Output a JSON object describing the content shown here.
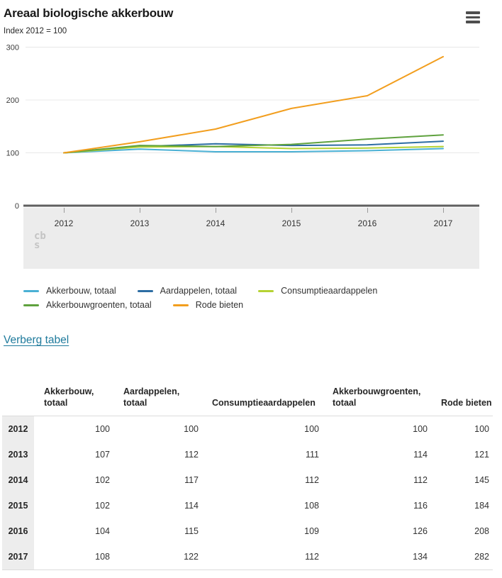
{
  "header": {
    "title": "Areaal biologische akkerbouw",
    "subtitle": "Index 2012 = 100"
  },
  "chart_data": {
    "type": "line",
    "title": "Areaal biologische akkerbouw",
    "subtitle": "Index 2012 = 100",
    "categories": [
      "2012",
      "2013",
      "2014",
      "2015",
      "2016",
      "2017"
    ],
    "series": [
      {
        "name": "Akkerbouw, totaal",
        "color": "#4ab0d4",
        "values": [
          100,
          107,
          102,
          102,
          104,
          108
        ]
      },
      {
        "name": "Aardappelen, totaal",
        "color": "#2d6da3",
        "values": [
          100,
          112,
          117,
          114,
          115,
          122
        ]
      },
      {
        "name": "Consumptieaardappelen",
        "color": "#b5d233",
        "values": [
          100,
          111,
          112,
          108,
          109,
          112
        ]
      },
      {
        "name": "Akkerbouwgroenten, totaal",
        "color": "#5fa23e",
        "values": [
          100,
          114,
          112,
          116,
          126,
          134
        ]
      },
      {
        "name": "Rode bieten",
        "color": "#f29e1e",
        "values": [
          100,
          121,
          145,
          184,
          208,
          282
        ]
      }
    ],
    "ylim": [
      0,
      300
    ],
    "yticks": [
      0,
      100,
      200,
      300
    ],
    "grid": true,
    "legend_position": "bottom",
    "legend_rows": [
      [
        0,
        1,
        2
      ],
      [
        3,
        4
      ]
    ]
  },
  "watermark": {
    "line1": "cb",
    "line2": "s"
  },
  "links": {
    "toggle_table": "Verberg tabel"
  },
  "table": {
    "columns": [
      "Akkerbouw, totaal",
      "Aardappelen, totaal",
      "Consumptieaardappelen",
      "Akkerbouwgroenten, totaal",
      "Rode bieten"
    ],
    "rows": [
      {
        "year": "2012",
        "values": [
          "100",
          "100",
          "100",
          "100",
          "100"
        ]
      },
      {
        "year": "2013",
        "values": [
          "107",
          "112",
          "111",
          "114",
          "121"
        ]
      },
      {
        "year": "2014",
        "values": [
          "102",
          "117",
          "112",
          "112",
          "145"
        ]
      },
      {
        "year": "2015",
        "values": [
          "102",
          "114",
          "108",
          "116",
          "184"
        ]
      },
      {
        "year": "2016",
        "values": [
          "104",
          "115",
          "109",
          "126",
          "208"
        ]
      },
      {
        "year": "2017",
        "values": [
          "108",
          "122",
          "112",
          "134",
          "282"
        ]
      }
    ]
  },
  "colors": {
    "link": "#1e7a9c",
    "axis": "#5f5f5f",
    "gridline": "#e8e8e8",
    "band_background": "#ececec",
    "row_header_background": "#ededed"
  }
}
